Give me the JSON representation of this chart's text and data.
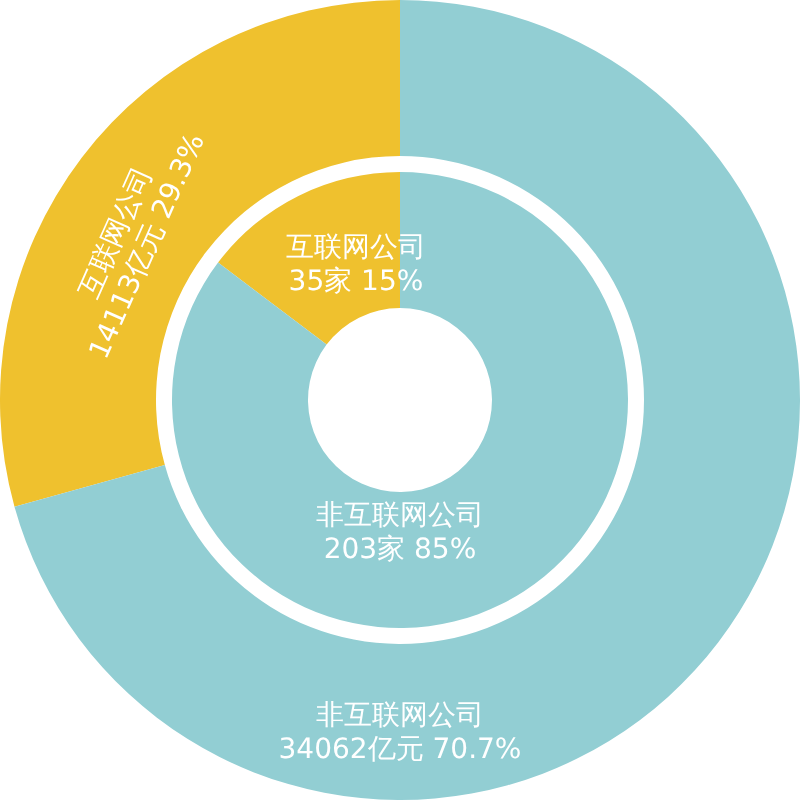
{
  "chart_data": [
    {
      "type": "donut",
      "categories": [
        "互联网公司",
        "非互联网公司"
      ],
      "values": [
        14113,
        34062
      ],
      "colors": [
        "#efc12e",
        "#92ced3"
      ],
      "value_labels": [
        "14113亿元 29.3%",
        "34062亿元 70.7%"
      ]
    },
    {
      "type": "donut",
      "categories": [
        "互联网公司",
        "非互联网公司"
      ],
      "values": [
        35,
        203
      ],
      "colors": [
        "#efc12e",
        "#92ced3"
      ],
      "value_labels": [
        "35家 15%",
        "203家 85%"
      ]
    }
  ]
}
